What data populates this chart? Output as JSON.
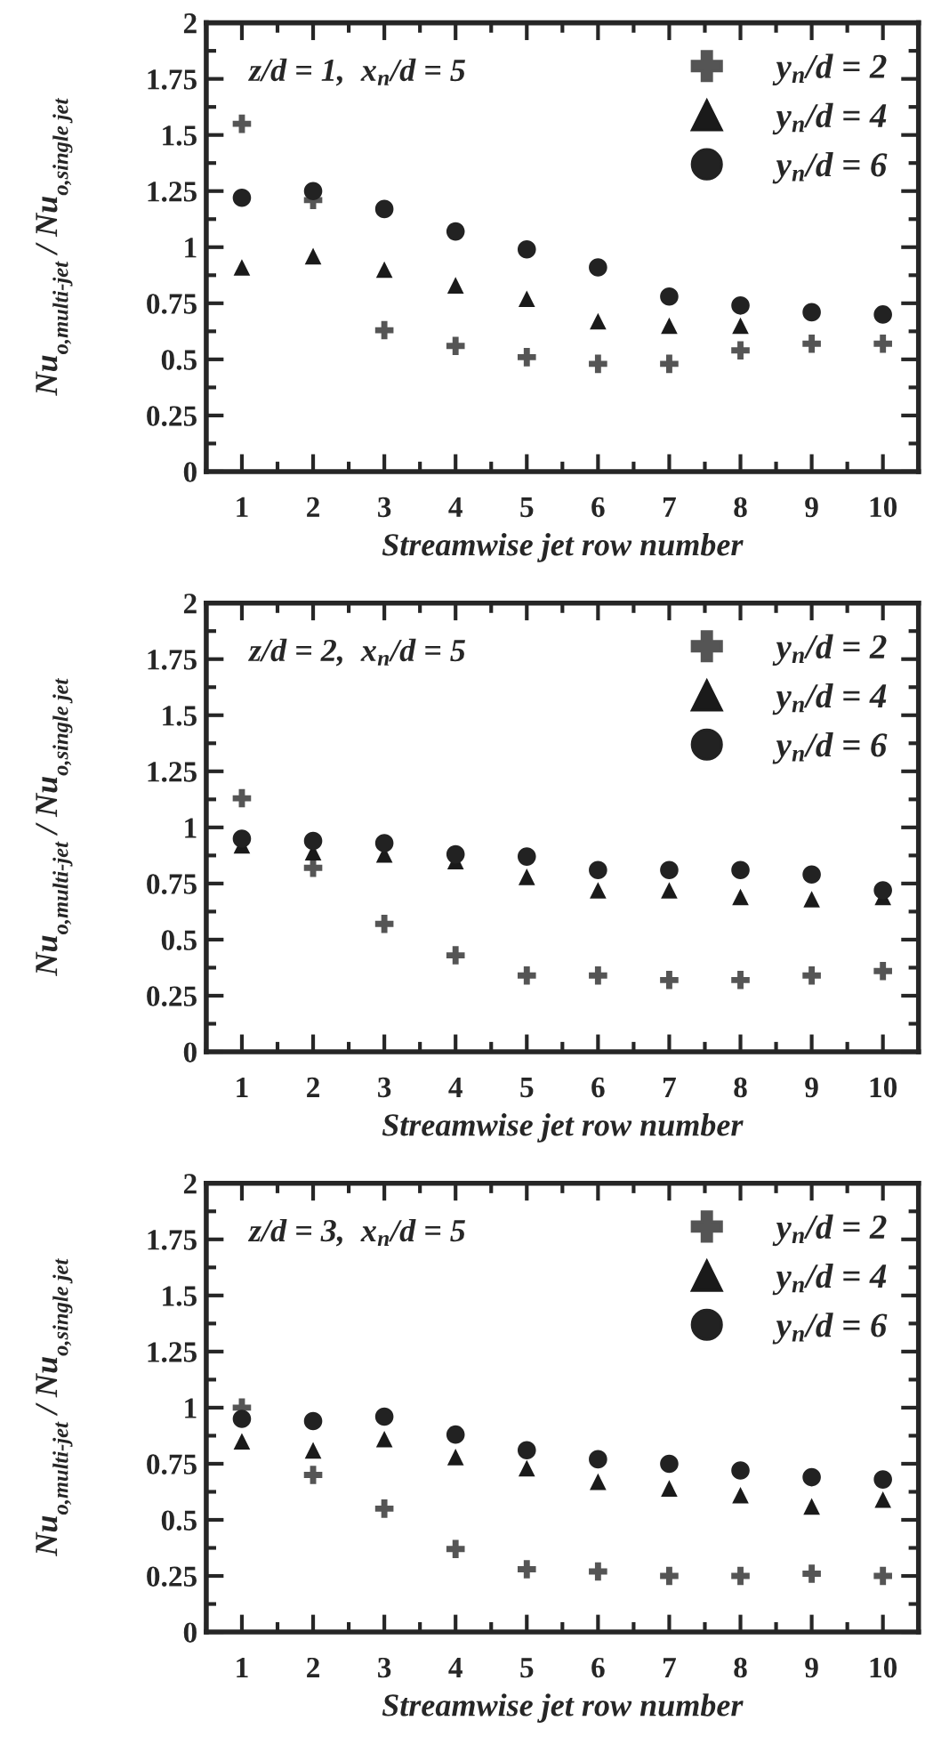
{
  "chart_data": [
    {
      "type": "scatter",
      "annotations": [
        "z/d = 1,  x$_{n}$/d = 5"
      ],
      "xlabel": "Streamwise jet row number",
      "ylabel": "Nu$_{o,multi-jet}$ / Nu$_{o,single jet}$",
      "x": [
        1,
        2,
        3,
        4,
        5,
        6,
        7,
        8,
        9,
        10
      ],
      "xlim": [
        0.5,
        10.5
      ],
      "xticks": [
        1,
        2,
        3,
        4,
        5,
        6,
        7,
        8,
        9,
        10
      ],
      "ylim": [
        0,
        2
      ],
      "yticks": [
        0,
        0.25,
        0.5,
        0.75,
        1,
        1.25,
        1.5,
        1.75,
        2
      ],
      "grid": false,
      "legend": "top right",
      "series": [
        {
          "name": "y$_{n}$/d = 2",
          "color": "#555555",
          "marker": "cross",
          "values": [
            1.55,
            1.21,
            0.63,
            0.56,
            0.51,
            0.48,
            0.48,
            0.54,
            0.57,
            0.57
          ]
        },
        {
          "name": "y$_{n}$/d = 4",
          "color": "#1a1a1a",
          "marker": "triangle",
          "values": [
            0.91,
            0.96,
            0.9,
            0.83,
            0.77,
            0.67,
            0.65,
            0.65,
            null,
            null
          ]
        },
        {
          "name": "y$_{n}$/d = 6",
          "color": "#222222",
          "marker": "circle",
          "values": [
            1.22,
            1.25,
            1.17,
            1.07,
            0.99,
            0.91,
            0.78,
            0.74,
            0.71,
            0.7
          ]
        }
      ]
    },
    {
      "type": "scatter",
      "annotations": [
        "z/d = 2,  x$_{n}$/d = 5"
      ],
      "xlabel": "Streamwise jet row number",
      "ylabel": "Nu$_{o,multi-jet}$ / Nu$_{o,single jet}$",
      "x": [
        1,
        2,
        3,
        4,
        5,
        6,
        7,
        8,
        9,
        10
      ],
      "xlim": [
        0.5,
        10.5
      ],
      "xticks": [
        1,
        2,
        3,
        4,
        5,
        6,
        7,
        8,
        9,
        10
      ],
      "ylim": [
        0,
        2
      ],
      "yticks": [
        0,
        0.25,
        0.5,
        0.75,
        1,
        1.25,
        1.5,
        1.75,
        2
      ],
      "grid": false,
      "legend": "top right",
      "series": [
        {
          "name": "y$_{n}$/d = 2",
          "color": "#555555",
          "marker": "cross",
          "values": [
            1.13,
            0.82,
            0.57,
            0.43,
            0.34,
            0.34,
            0.32,
            0.32,
            0.34,
            0.36
          ]
        },
        {
          "name": "y$_{n}$/d = 4",
          "color": "#1a1a1a",
          "marker": "triangle",
          "values": [
            0.92,
            0.89,
            0.88,
            0.85,
            0.78,
            0.72,
            0.72,
            0.69,
            0.68,
            0.69
          ]
        },
        {
          "name": "y$_{n}$/d = 6",
          "color": "#222222",
          "marker": "circle",
          "values": [
            0.95,
            0.94,
            0.93,
            0.88,
            0.87,
            0.81,
            0.81,
            0.81,
            0.79,
            0.72
          ]
        }
      ]
    },
    {
      "type": "scatter",
      "annotations": [
        "z/d = 3,  x$_{n}$/d = 5"
      ],
      "xlabel": "Streamwise jet row number",
      "ylabel": "Nu$_{o,multi-jet}$ / Nu$_{o,single jet}$",
      "x": [
        1,
        2,
        3,
        4,
        5,
        6,
        7,
        8,
        9,
        10
      ],
      "xlim": [
        0.5,
        10.5
      ],
      "xticks": [
        1,
        2,
        3,
        4,
        5,
        6,
        7,
        8,
        9,
        10
      ],
      "ylim": [
        0,
        2
      ],
      "yticks": [
        0,
        0.25,
        0.5,
        0.75,
        1,
        1.25,
        1.5,
        1.75,
        2
      ],
      "grid": false,
      "legend": "top right",
      "series": [
        {
          "name": "y$_{n}$/d = 2",
          "color": "#555555",
          "marker": "cross",
          "values": [
            1.0,
            0.7,
            0.55,
            0.37,
            0.28,
            0.27,
            0.25,
            0.25,
            0.26,
            0.25
          ]
        },
        {
          "name": "y$_{n}$/d = 4",
          "color": "#1a1a1a",
          "marker": "triangle",
          "values": [
            0.85,
            0.81,
            0.86,
            0.78,
            0.73,
            0.67,
            0.64,
            0.61,
            0.56,
            0.59
          ]
        },
        {
          "name": "y$_{n}$/d = 6",
          "color": "#222222",
          "marker": "circle",
          "values": [
            0.95,
            0.94,
            0.96,
            0.88,
            0.81,
            0.77,
            0.75,
            0.72,
            0.69,
            0.68
          ]
        }
      ]
    }
  ]
}
